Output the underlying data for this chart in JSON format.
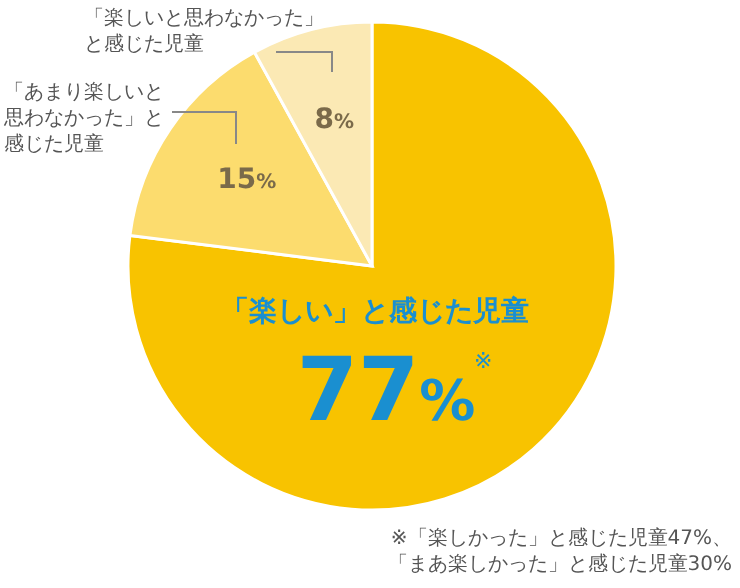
{
  "chart_data": {
    "type": "pie",
    "categories": [
      "「楽しい」と感じた児童",
      "「あまり楽しいと思わなかった」と感じた児童",
      "「楽しいと思わなかった」と感じた児童"
    ],
    "values": [
      77,
      15,
      8
    ],
    "colors": [
      "#f8c300",
      "#fcdc6e",
      "#fbe9b4"
    ],
    "value_labels": [
      "77%",
      "15%",
      "8%"
    ],
    "annotations": [
      "※",
      "※「楽しかった」と感じた児童47%、「まあ楽しかった」と感じた児童30%"
    ]
  }
}
